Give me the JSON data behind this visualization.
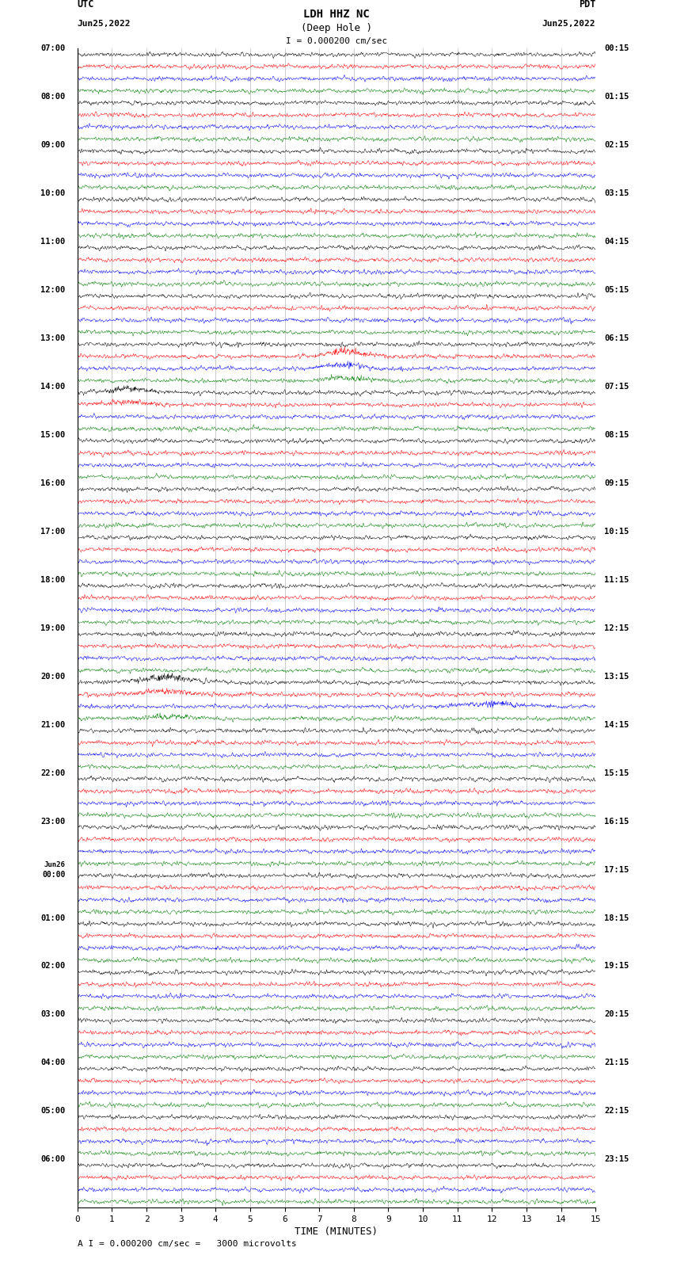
{
  "title_line1": "LDH HHZ NC",
  "title_line2": "(Deep Hole )",
  "left_header": "UTC",
  "left_date": "Jun25,2022",
  "right_header": "PDT",
  "right_date": "Jun25,2022",
  "scale_text": "I = 0.000200 cm/sec",
  "bottom_note": "A I = 0.000200 cm/sec =   3000 microvolts",
  "xlabel": "TIME (MINUTES)",
  "xmin": 0,
  "xmax": 15,
  "colors": [
    "black",
    "red",
    "blue",
    "green"
  ],
  "utc_labels": [
    "07:00",
    "08:00",
    "09:00",
    "10:00",
    "11:00",
    "12:00",
    "13:00",
    "14:00",
    "15:00",
    "16:00",
    "17:00",
    "18:00",
    "19:00",
    "20:00",
    "21:00",
    "22:00",
    "23:00",
    "Jun26\n00:00",
    "01:00",
    "02:00",
    "03:00",
    "04:00",
    "05:00",
    "06:00"
  ],
  "pdt_labels": [
    "00:15",
    "01:15",
    "02:15",
    "03:15",
    "04:15",
    "05:15",
    "06:15",
    "07:15",
    "08:15",
    "09:15",
    "10:15",
    "11:15",
    "12:15",
    "13:15",
    "14:15",
    "15:15",
    "16:15",
    "17:15",
    "18:15",
    "19:15",
    "20:15",
    "21:15",
    "22:15",
    "23:15"
  ],
  "num_hours": 24,
  "traces_per_hour": 4,
  "background_color": "white",
  "noise_amplitude": 0.12,
  "special_events": [
    {
      "hour": 6,
      "trace": 1,
      "xmin": 6.5,
      "xmax": 9.0,
      "amplitude": 3.5
    },
    {
      "hour": 6,
      "trace": 2,
      "xmin": 6.5,
      "xmax": 9.0,
      "amplitude": 2.5
    },
    {
      "hour": 6,
      "trace": 3,
      "xmin": 6.5,
      "xmax": 9.0,
      "amplitude": 2.0
    },
    {
      "hour": 7,
      "trace": 0,
      "xmin": 0.0,
      "xmax": 3.0,
      "amplitude": 2.5
    },
    {
      "hour": 7,
      "trace": 1,
      "xmin": 0.0,
      "xmax": 3.0,
      "amplitude": 1.8
    },
    {
      "hour": 13,
      "trace": 0,
      "xmin": 1.0,
      "xmax": 4.0,
      "amplitude": 4.0
    },
    {
      "hour": 13,
      "trace": 1,
      "xmin": 1.0,
      "xmax": 4.0,
      "amplitude": 2.5
    },
    {
      "hour": 13,
      "trace": 2,
      "xmin": 10.0,
      "xmax": 14.0,
      "amplitude": 2.0
    },
    {
      "hour": 13,
      "trace": 3,
      "xmin": 1.0,
      "xmax": 4.0,
      "amplitude": 1.8
    }
  ]
}
